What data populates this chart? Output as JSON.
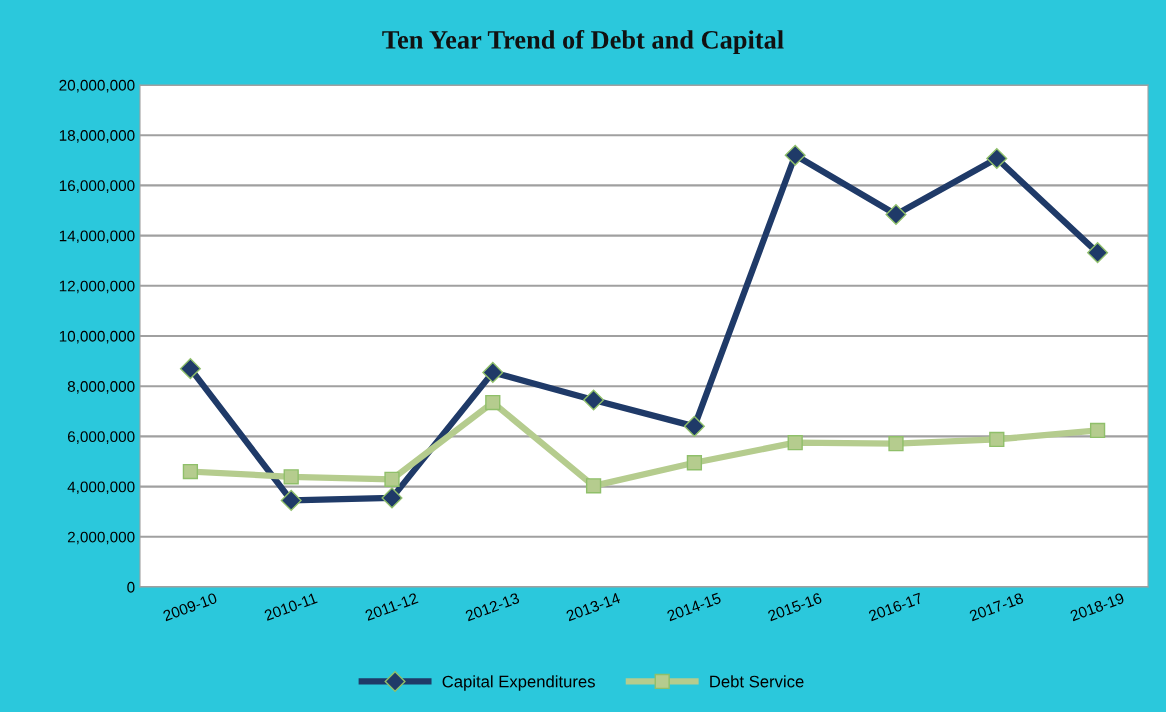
{
  "chart_data": {
    "type": "line",
    "title": "Ten Year Trend of Debt and Capital",
    "categories": [
      "2009-10",
      "2010-11",
      "2011-12",
      "2012-13",
      "2013-14",
      "2014-15",
      "2015-16",
      "2016-17",
      "2017-18",
      "2018-19"
    ],
    "series": [
      {
        "name": "Capital Expenditures",
        "color": "#1f3a68",
        "marker": "diamond",
        "values": [
          8700000,
          3450000,
          3550000,
          8550000,
          7450000,
          6400000,
          17200000,
          14840000,
          17070000,
          13320000
        ]
      },
      {
        "name": "Debt Service",
        "color": "#b5cc8e",
        "marker": "square",
        "values": [
          4600000,
          4390000,
          4290000,
          7350000,
          4030000,
          4950000,
          5750000,
          5710000,
          5880000,
          6240000
        ]
      }
    ],
    "ylim": [
      0,
      20000000
    ],
    "yticks": [
      {
        "value": 0,
        "label": "0"
      },
      {
        "value": 2000000,
        "label": "2,000,000"
      },
      {
        "value": 4000000,
        "label": "4,000,000"
      },
      {
        "value": 6000000,
        "label": "6,000,000"
      },
      {
        "value": 8000000,
        "label": "8,000,000"
      },
      {
        "value": 10000000,
        "label": "10,000,000"
      },
      {
        "value": 12000000,
        "label": "12,000,000"
      },
      {
        "value": 14000000,
        "label": "14,000,000"
      },
      {
        "value": 16000000,
        "label": "16,000,000"
      },
      {
        "value": 18000000,
        "label": "18,000,000"
      },
      {
        "value": 20000000,
        "label": "20,000,000"
      }
    ],
    "grid": "y",
    "legend": "bottom",
    "line_style": "solid"
  }
}
